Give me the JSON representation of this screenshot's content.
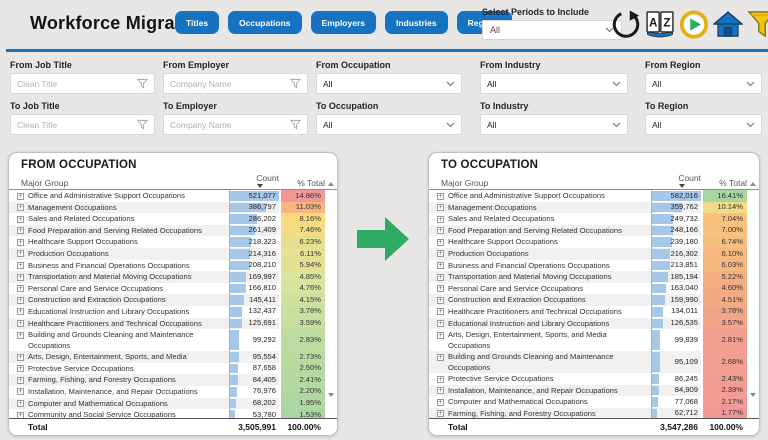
{
  "header": {
    "title": "Workforce Migration",
    "nav_buttons": [
      "Titles",
      "Occupations",
      "Employers",
      "Industries",
      "Regions"
    ],
    "period_label": "Select Periods to Include",
    "period_value": "All",
    "icon_names": [
      "refresh-icon",
      "az-glossary-icon",
      "play-icon",
      "home-icon",
      "filter-icon"
    ]
  },
  "filters": [
    {
      "label": "From Job Title",
      "type": "text",
      "placeholder": "Clean Title"
    },
    {
      "label": "From Employer",
      "type": "text",
      "placeholder": "Company Name"
    },
    {
      "label": "From Occupation",
      "type": "dropdown",
      "value": "All"
    },
    {
      "label": "From Industry",
      "type": "dropdown",
      "value": "All"
    },
    {
      "label": "From Region",
      "type": "dropdown",
      "value": "All"
    },
    {
      "label": "To Job Title",
      "type": "text",
      "placeholder": "Clean Title"
    },
    {
      "label": "To Employer",
      "type": "text",
      "placeholder": "Company Name"
    },
    {
      "label": "To Occupation",
      "type": "dropdown",
      "value": "All"
    },
    {
      "label": "To Industry",
      "type": "dropdown",
      "value": "All"
    },
    {
      "label": "To Region",
      "type": "dropdown",
      "value": "All"
    }
  ],
  "tables": {
    "from": {
      "title": "FROM OCCUPATION",
      "columns": [
        "Major Group",
        "Count",
        "% Total"
      ],
      "heat_direction": "high-red",
      "rows": [
        {
          "group": "Office and Administrative Support Occupations",
          "count": "521,077",
          "pct": "14.86%"
        },
        {
          "group": "Management Occupations",
          "count": "386,797",
          "pct": "11.03%"
        },
        {
          "group": "Sales and Related Occupations",
          "count": "286,202",
          "pct": "8.16%"
        },
        {
          "group": "Food Preparation and Serving Related Occupations",
          "count": "261,409",
          "pct": "7.46%"
        },
        {
          "group": "Healthcare Support Occupations",
          "count": "218,323",
          "pct": "6.23%"
        },
        {
          "group": "Production Occupations",
          "count": "214,316",
          "pct": "6.11%"
        },
        {
          "group": "Business and Financial Operations Occupations",
          "count": "208,210",
          "pct": "5.94%"
        },
        {
          "group": "Transportation and Material Moving Occupations",
          "count": "169,997",
          "pct": "4.85%"
        },
        {
          "group": "Personal Care and Service Occupations",
          "count": "166,810",
          "pct": "4.76%"
        },
        {
          "group": "Construction and Extraction Occupations",
          "count": "145,411",
          "pct": "4.15%"
        },
        {
          "group": "Educational Instruction and Library Occupations",
          "count": "132,437",
          "pct": "3.78%"
        },
        {
          "group": "Healthcare Practitioners and Technical Occupations",
          "count": "125,691",
          "pct": "3.59%"
        },
        {
          "group": "Building and Grounds Cleaning and Maintenance Occupations",
          "count": "99,292",
          "pct": "2.83%"
        },
        {
          "group": "Arts, Design, Entertainment, Sports, and Media",
          "count": "95,554",
          "pct": "2.73%"
        },
        {
          "group": "Protective Service Occupations",
          "count": "87,658",
          "pct": "2.50%"
        },
        {
          "group": "Farming, Fishing, and Forestry Occupations",
          "count": "84,405",
          "pct": "2.41%"
        },
        {
          "group": "Installation, Maintenance, and Repair Occupations",
          "count": "76,976",
          "pct": "2.20%"
        },
        {
          "group": "Computer and Mathematical Occupations",
          "count": "68,202",
          "pct": "1.95%"
        },
        {
          "group": "Community and Social Service Occupations",
          "count": "53,780",
          "pct": "1.53%"
        }
      ],
      "total": {
        "label": "Total",
        "count": "3,505,991",
        "pct": "100.00%"
      }
    },
    "to": {
      "title": "TO OCCUPATION",
      "columns": [
        "Major Group",
        "Count",
        "% Total"
      ],
      "heat_direction": "high-green",
      "rows": [
        {
          "group": "Office and Administrative Support Occupations",
          "count": "582,016",
          "pct": "16.41%"
        },
        {
          "group": "Management Occupations",
          "count": "359,762",
          "pct": "10.14%"
        },
        {
          "group": "Sales and Related Occupations",
          "count": "249,732",
          "pct": "7.04%"
        },
        {
          "group": "Food Preparation and Serving Related Occupations",
          "count": "248,166",
          "pct": "7.00%"
        },
        {
          "group": "Healthcare Support Occupations",
          "count": "239,180",
          "pct": "6.74%"
        },
        {
          "group": "Production Occupations",
          "count": "216,302",
          "pct": "6.10%"
        },
        {
          "group": "Business and Financial Operations Occupations",
          "count": "213,851",
          "pct": "6.03%"
        },
        {
          "group": "Transportation and Material Moving Occupations",
          "count": "185,194",
          "pct": "5.22%"
        },
        {
          "group": "Personal Care and Service Occupations",
          "count": "163,040",
          "pct": "4.60%"
        },
        {
          "group": "Construction and Extraction Occupations",
          "count": "159,990",
          "pct": "4.51%"
        },
        {
          "group": "Healthcare Practitioners and Technical Occupations",
          "count": "134,011",
          "pct": "3.78%"
        },
        {
          "group": "Educational Instruction and Library Occupations",
          "count": "126,535",
          "pct": "3.57%"
        },
        {
          "group": "Arts, Design, Entertainment, Sports, and Media Occupations",
          "count": "99,839",
          "pct": "2.81%"
        },
        {
          "group": "Building and Grounds Cleaning and Maintenance Occupations",
          "count": "95,109",
          "pct": "2.68%"
        },
        {
          "group": "Protective Service Occupations",
          "count": "86,245",
          "pct": "2.43%"
        },
        {
          "group": "Installation, Maintenance, and Repair Occupations",
          "count": "84,909",
          "pct": "2.39%"
        },
        {
          "group": "Computer and Mathematical Occupations",
          "count": "77,068",
          "pct": "2.17%"
        },
        {
          "group": "Farming, Fishing, and Forestry Occupations",
          "count": "62,712",
          "pct": "1.77%"
        }
      ],
      "total": {
        "label": "Total",
        "count": "3,547,286",
        "pct": "100.00%"
      }
    }
  },
  "icons": {
    "expand": "+"
  },
  "colors": {
    "accent_blue": "#1673C2",
    "bar_blue": "#A6C8E8",
    "arrow_green": "#2FAB63",
    "heat_stops": [
      "#A8D5A2",
      "#D9E49E",
      "#FBD97D",
      "#F5B07E",
      "#F19897"
    ]
  }
}
